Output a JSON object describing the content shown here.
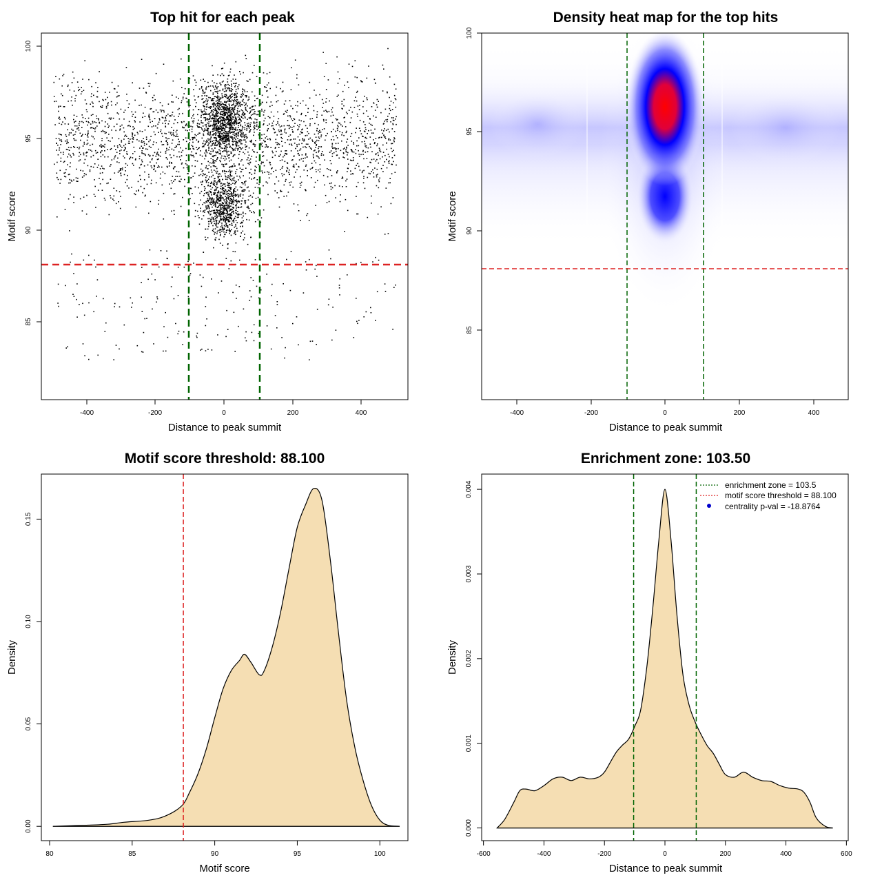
{
  "chart_data": [
    {
      "type": "scatter",
      "title": "Top hit for each peak",
      "xlabel": "Distance to peak summit",
      "ylabel": "Motif score",
      "xlim": [
        -535,
        535
      ],
      "ylim": [
        80.8,
        100.8
      ],
      "xticks": [
        -400,
        -200,
        0,
        200,
        400
      ],
      "yticks": [
        85,
        90,
        95,
        100
      ],
      "vlines": [
        -103.5,
        103.5
      ],
      "hline": 88.1,
      "points_summary": "about 5000 dots: concentrated in x between -100 and 100 with motif scores 88-100; sparse background uniform across x from -500 to 500; few outliers below 88",
      "colors": {
        "points": "#000000",
        "vline": "#006400",
        "hline": "#dd2222"
      }
    },
    {
      "type": "heatmap",
      "title": "Density heat map for the top hits",
      "xlabel": "Distance to peak summit",
      "ylabel": "Motif score",
      "xlim": [
        -493,
        493
      ],
      "ylim": [
        81.6,
        100
      ],
      "xticks": [
        -400,
        -200,
        0,
        200,
        400
      ],
      "yticks": [
        85,
        90,
        95,
        100
      ],
      "vlines": [
        -103.5,
        103.5
      ],
      "hline": 88.1,
      "density_peaks": [
        {
          "x": 0,
          "y": 96.5,
          "level": "max"
        },
        {
          "x": 0,
          "y": 91.5,
          "level": "high"
        },
        {
          "x": 0,
          "y": 94.0,
          "level": "medium"
        }
      ],
      "colors": {
        "low": "#ffffff",
        "mid": "#0000ff",
        "high": "#ff0000",
        "vline": "#006400",
        "hline": "#dd2222"
      }
    },
    {
      "type": "area",
      "title": "Motif score threshold: 88.100",
      "xlabel": "Motif score",
      "ylabel": "Density",
      "xlim": [
        79.5,
        101.7
      ],
      "ylim": [
        -0.007,
        0.172
      ],
      "xticks": [
        80,
        85,
        90,
        95,
        100
      ],
      "yticks": [
        "0.00",
        "0.05",
        "0.10",
        "0.15"
      ],
      "vline": 88.1,
      "x": [
        80.2,
        82,
        83.5,
        84.5,
        86,
        87,
        88,
        88.5,
        89,
        89.5,
        90,
        90.5,
        91,
        91.5,
        91.8,
        92.2,
        92.7,
        93,
        93.5,
        94,
        94.5,
        95,
        95.5,
        96,
        96.5,
        97,
        97.5,
        98,
        98.5,
        99,
        99.5,
        100,
        100.5,
        101.2
      ],
      "y": [
        0,
        0.0005,
        0.001,
        0.002,
        0.003,
        0.005,
        0.01,
        0.017,
        0.026,
        0.038,
        0.053,
        0.067,
        0.076,
        0.081,
        0.084,
        0.08,
        0.074,
        0.076,
        0.088,
        0.105,
        0.126,
        0.146,
        0.157,
        0.165,
        0.159,
        0.13,
        0.094,
        0.061,
        0.038,
        0.022,
        0.01,
        0.003,
        0.0005,
        0
      ],
      "colors": {
        "fill": "#f5deb3",
        "line": "#000000",
        "vline": "#dd2222"
      }
    },
    {
      "type": "area",
      "title": "Enrichment zone: 103.50",
      "xlabel": "Distance to peak summit",
      "ylabel": "Density",
      "xlim": [
        -606,
        606
      ],
      "ylim": [
        -0.00015,
        0.00418
      ],
      "xticks": [
        -600,
        -400,
        -200,
        0,
        200,
        400,
        600
      ],
      "yticks": [
        "0.000",
        "0.001",
        "0.002",
        "0.003",
        "0.004"
      ],
      "vlines": [
        -103.5,
        103.5
      ],
      "x": [
        -555,
        -530,
        -500,
        -480,
        -460,
        -430,
        -400,
        -370,
        -340,
        -310,
        -280,
        -250,
        -220,
        -200,
        -180,
        -160,
        -140,
        -120,
        -100,
        -80,
        -60,
        -40,
        -20,
        0,
        20,
        40,
        60,
        80,
        100,
        120,
        140,
        160,
        180,
        200,
        230,
        260,
        290,
        320,
        350,
        380,
        410,
        440,
        460,
        480,
        500,
        530,
        555
      ],
      "y": [
        0,
        0.0001,
        0.0003,
        0.00044,
        0.00046,
        0.00044,
        0.0005,
        0.00058,
        0.0006,
        0.00056,
        0.0006,
        0.00058,
        0.0006,
        0.00066,
        0.00078,
        0.0009,
        0.00098,
        0.00105,
        0.0012,
        0.0014,
        0.0019,
        0.0026,
        0.0034,
        0.004,
        0.0034,
        0.0025,
        0.0018,
        0.00145,
        0.00125,
        0.0011,
        0.00097,
        0.00088,
        0.00075,
        0.00063,
        0.0006,
        0.00066,
        0.0006,
        0.00056,
        0.00055,
        0.0005,
        0.00047,
        0.00046,
        0.00042,
        0.0003,
        0.00012,
        2e-05,
        0
      ],
      "legend": [
        "enrichment zone = 103.5",
        "motif score threshold = 88.100",
        "centrality p-val = -18.8764"
      ],
      "legend_position": "top-right",
      "colors": {
        "fill": "#f5deb3",
        "line": "#000000",
        "vline": "#006400",
        "legend_dot": "#0000cc",
        "legend_red": "#dd2222"
      }
    }
  ]
}
